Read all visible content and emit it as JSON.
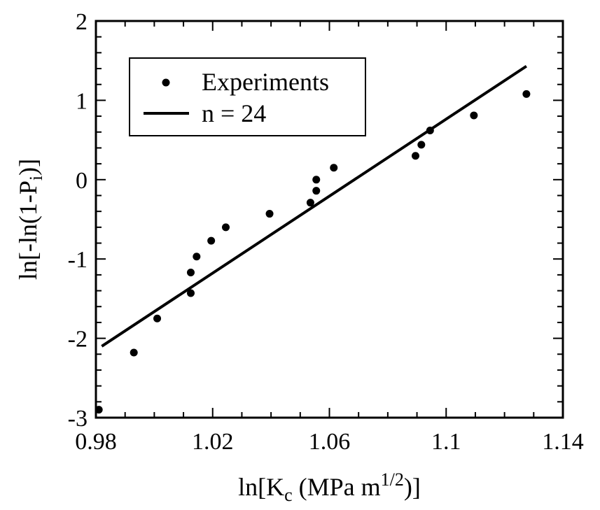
{
  "chart_data": {
    "type": "scatter",
    "title": "",
    "xlabel": {
      "base": "ln[K",
      "sub": "c",
      "mid": " (MPa m",
      "sup": "1/2",
      "end": ")]"
    },
    "ylabel": {
      "base": "ln[-ln(1-P",
      "sub": "i",
      "end": ")]"
    },
    "xlim": [
      0.98,
      1.14
    ],
    "ylim": [
      -3,
      2
    ],
    "xticks": [
      0.98,
      1.02,
      1.06,
      1.1,
      1.14
    ],
    "xtick_labels": [
      "0.98",
      "1.02",
      "1.06",
      "1.1",
      "1.14"
    ],
    "yticks": [
      -3,
      -2,
      -1,
      0,
      1,
      2
    ],
    "ytick_labels": [
      "-3",
      "-2",
      "-1",
      "0",
      "1",
      "2"
    ],
    "grid": false,
    "legend_position": "top-left",
    "series": [
      {
        "name": "Experiments",
        "type": "scatter",
        "color": "#000000",
        "x": [
          0.981,
          0.993,
          1.001,
          1.0125,
          1.0125,
          1.0145,
          1.0195,
          1.0245,
          1.0395,
          1.0535,
          1.0555,
          1.0555,
          1.0615,
          1.0895,
          1.0915,
          1.0945,
          1.1095,
          1.1275
        ],
        "y": [
          -2.9,
          -2.18,
          -1.75,
          -1.43,
          -1.17,
          -0.97,
          -0.77,
          -0.6,
          -0.43,
          -0.29,
          -0.14,
          0.0,
          0.15,
          0.3,
          0.44,
          0.62,
          0.81,
          1.08
        ]
      },
      {
        "name": "n = 24",
        "type": "line",
        "color": "#000000",
        "x": [
          0.982,
          1.1275
        ],
        "y": [
          -2.1,
          1.43
        ]
      }
    ]
  }
}
